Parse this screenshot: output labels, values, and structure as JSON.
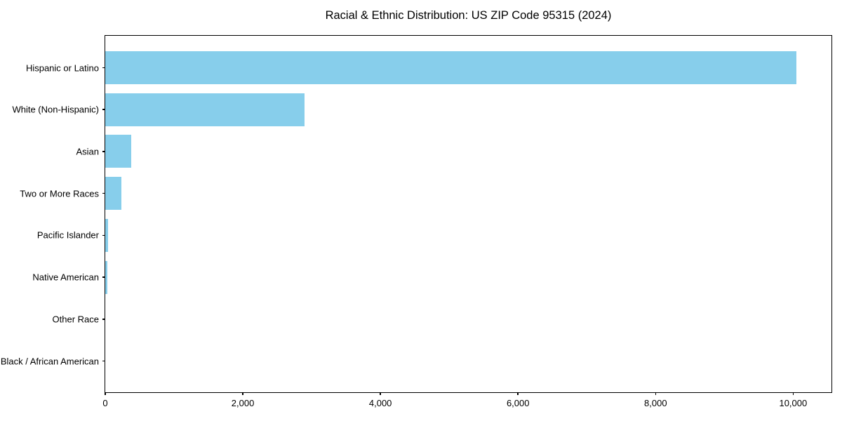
{
  "chart_data": {
    "type": "bar",
    "orientation": "horizontal",
    "title": "Racial & Ethnic Distribution: US ZIP Code 95315 (2024)",
    "categories": [
      "Hispanic or Latino",
      "White (Non-Hispanic)",
      "Asian",
      "Two or More Races",
      "Pacific Islander",
      "Native American",
      "Other Race",
      "Black / African American"
    ],
    "values": [
      10050,
      2900,
      380,
      235,
      45,
      30,
      0,
      0
    ],
    "xlabel": "",
    "ylabel": "",
    "xlim": [
      0,
      10547
    ],
    "x_ticks": [
      {
        "value": 0,
        "label": "0"
      },
      {
        "value": 2000,
        "label": "2,000"
      },
      {
        "value": 4000,
        "label": "4,000"
      },
      {
        "value": 6000,
        "label": "6,000"
      },
      {
        "value": 8000,
        "label": "8,000"
      },
      {
        "value": 10000,
        "label": "10,000"
      }
    ],
    "bar_color": "#87CEEB",
    "spine_color": "#000000",
    "text_color": "#000000",
    "background_color": "#ffffff",
    "grid": false,
    "legend": "none"
  }
}
